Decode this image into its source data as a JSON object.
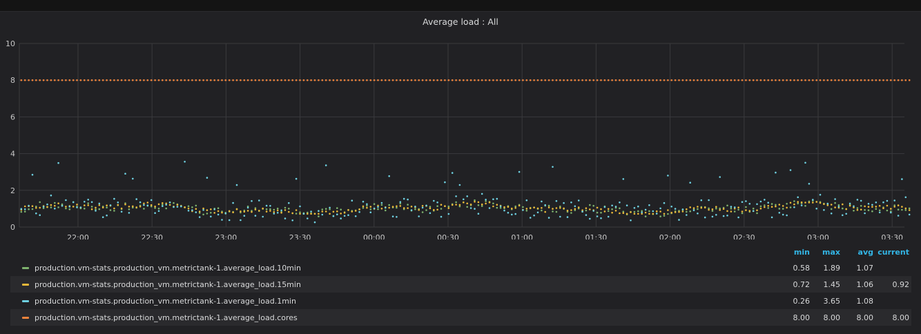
{
  "panel": {
    "title": "Average load : All"
  },
  "legend": {
    "headers": {
      "min": "min",
      "max": "max",
      "avg": "avg",
      "current": "current"
    },
    "items": [
      {
        "name": "production.vm-stats.production_vm.metrictank-1.average_load.10min",
        "color": "#7eb26d",
        "min": "0.58",
        "max": "1.89",
        "avg": "1.07",
        "current": ""
      },
      {
        "name": "production.vm-stats.production_vm.metrictank-1.average_load.15min",
        "color": "#eab839",
        "min": "0.72",
        "max": "1.45",
        "avg": "1.06",
        "current": "0.92"
      },
      {
        "name": "production.vm-stats.production_vm.metrictank-1.average_load.1min",
        "color": "#6ed0e0",
        "min": "0.26",
        "max": "3.65",
        "avg": "1.08",
        "current": ""
      },
      {
        "name": "production.vm-stats.production_vm.metrictank-1.average_load.cores",
        "color": "#ef843c",
        "min": "8.00",
        "max": "8.00",
        "avg": "8.00",
        "current": "8.00"
      }
    ]
  },
  "chart_data": {
    "type": "scatter",
    "title": "Average load : All",
    "xlabel": "",
    "ylabel": "",
    "ylim": [
      0,
      10
    ],
    "yticks": [
      "0",
      "2",
      "4",
      "6",
      "8",
      "10"
    ],
    "xticks": [
      "22:00",
      "22:30",
      "23:00",
      "23:30",
      "00:00",
      "00:30",
      "01:00",
      "01:30",
      "02:00",
      "02:30",
      "03:00",
      "03:30"
    ],
    "x_range": [
      "21:37",
      "03:37"
    ],
    "grid": true,
    "legend_position": "bottom",
    "points_per_series": 240,
    "series": [
      {
        "name": "production.vm-stats.production_vm.metrictank-1.average_load.10min",
        "color": "#7eb26d",
        "min": 0.58,
        "max": 1.89,
        "avg": 1.07
      },
      {
        "name": "production.vm-stats.production_vm.metrictank-1.average_load.15min",
        "color": "#eab839",
        "min": 0.72,
        "max": 1.45,
        "avg": 1.06,
        "current": 0.92
      },
      {
        "name": "production.vm-stats.production_vm.metrictank-1.average_load.1min",
        "color": "#6ed0e0",
        "min": 0.26,
        "max": 3.65,
        "avg": 1.08
      },
      {
        "name": "production.vm-stats.production_vm.metrictank-1.average_load.cores",
        "color": "#ef843c",
        "min": 8.0,
        "max": 8.0,
        "avg": 8.0,
        "current": 8.0
      }
    ]
  }
}
